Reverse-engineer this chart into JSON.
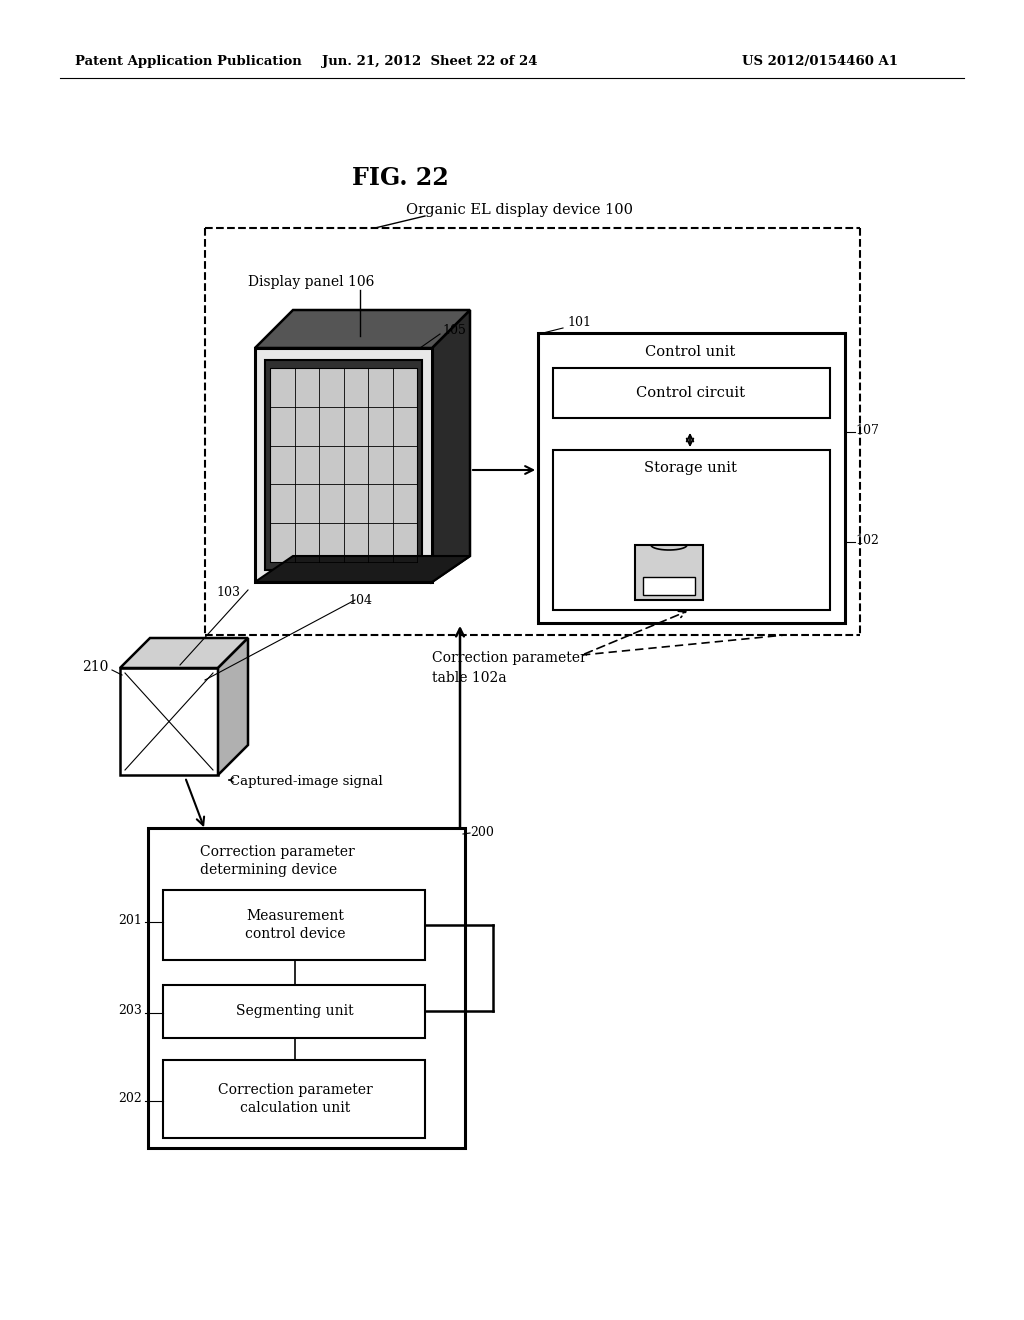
{
  "bg": "#ffffff",
  "header_left": "Patent Application Publication",
  "header_mid": "Jun. 21, 2012  Sheet 22 of 24",
  "header_right": "US 2012/0154460 A1",
  "fig_label": "FIG. 22",
  "label_organic": "Organic EL display device 100",
  "label_display_panel": "Display panel 106",
  "label_control_unit": "Control unit",
  "label_control_circuit": "Control circuit",
  "label_storage_unit": "Storage unit",
  "label_correction_param_table": "Correction parameter\ntable 102a",
  "label_captured_image": "Captured-image signal",
  "label_cpdd_title": "Correction parameter\ndetermining device",
  "label_mcd": "Measurement\ncontrol device",
  "label_seg": "Segmenting unit",
  "label_cpc": "Correction parameter\ncalculation unit",
  "n101": "101",
  "n102": "102",
  "n103": "103",
  "n104": "104",
  "n105": "105",
  "n107": "107",
  "n200": "200",
  "n201": "201",
  "n202": "202",
  "n203": "203",
  "n210": "210"
}
